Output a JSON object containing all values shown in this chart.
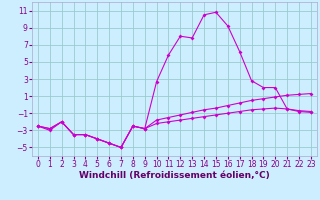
{
  "xlabel": "Windchill (Refroidissement éolien,°C)",
  "bg_color": "#cceeff",
  "line_color": "#cc00cc",
  "grid_color": "#99cccc",
  "xlim": [
    -0.5,
    23.5
  ],
  "ylim": [
    -6,
    12
  ],
  "xticks": [
    0,
    1,
    2,
    3,
    4,
    5,
    6,
    7,
    8,
    9,
    10,
    11,
    12,
    13,
    14,
    15,
    16,
    17,
    18,
    19,
    20,
    21,
    22,
    23
  ],
  "yticks": [
    -5,
    -3,
    -1,
    1,
    3,
    5,
    7,
    9,
    11
  ],
  "line1_x": [
    0,
    1,
    2,
    3,
    4,
    5,
    6,
    7,
    8,
    9,
    10,
    11,
    12,
    13,
    14,
    15,
    16,
    17,
    18,
    19,
    20,
    21,
    22,
    23
  ],
  "line1_y": [
    -2.5,
    -3.0,
    -2.0,
    -3.5,
    -3.5,
    -4.0,
    -4.5,
    -5.0,
    -2.5,
    -2.8,
    2.7,
    5.8,
    8.0,
    7.8,
    10.5,
    10.8,
    9.2,
    6.2,
    2.8,
    2.0,
    2.0,
    -0.5,
    -0.8,
    -0.9
  ],
  "line2_x": [
    0,
    1,
    2,
    3,
    4,
    5,
    6,
    7,
    8,
    9,
    10,
    11,
    12,
    13,
    14,
    15,
    16,
    17,
    18,
    19,
    20,
    21,
    22,
    23
  ],
  "line2_y": [
    -2.5,
    -2.8,
    -2.0,
    -3.5,
    -3.5,
    -4.0,
    -4.5,
    -5.0,
    -2.5,
    -2.8,
    -1.8,
    -1.5,
    -1.2,
    -0.9,
    -0.6,
    -0.4,
    -0.1,
    0.2,
    0.5,
    0.7,
    0.9,
    1.1,
    1.2,
    1.3
  ],
  "line3_x": [
    0,
    1,
    2,
    3,
    4,
    5,
    6,
    7,
    8,
    9,
    10,
    11,
    12,
    13,
    14,
    15,
    16,
    17,
    18,
    19,
    20,
    21,
    22,
    23
  ],
  "line3_y": [
    -2.5,
    -2.8,
    -2.0,
    -3.5,
    -3.5,
    -4.0,
    -4.5,
    -5.0,
    -2.5,
    -2.8,
    -2.2,
    -2.0,
    -1.8,
    -1.6,
    -1.4,
    -1.2,
    -1.0,
    -0.8,
    -0.6,
    -0.5,
    -0.4,
    -0.5,
    -0.7,
    -0.8
  ],
  "tick_fontsize": 5.5,
  "xlabel_fontsize": 6.5,
  "tick_color": "#880088",
  "xlabel_color": "#660066",
  "spine_color": "#aaaacc"
}
